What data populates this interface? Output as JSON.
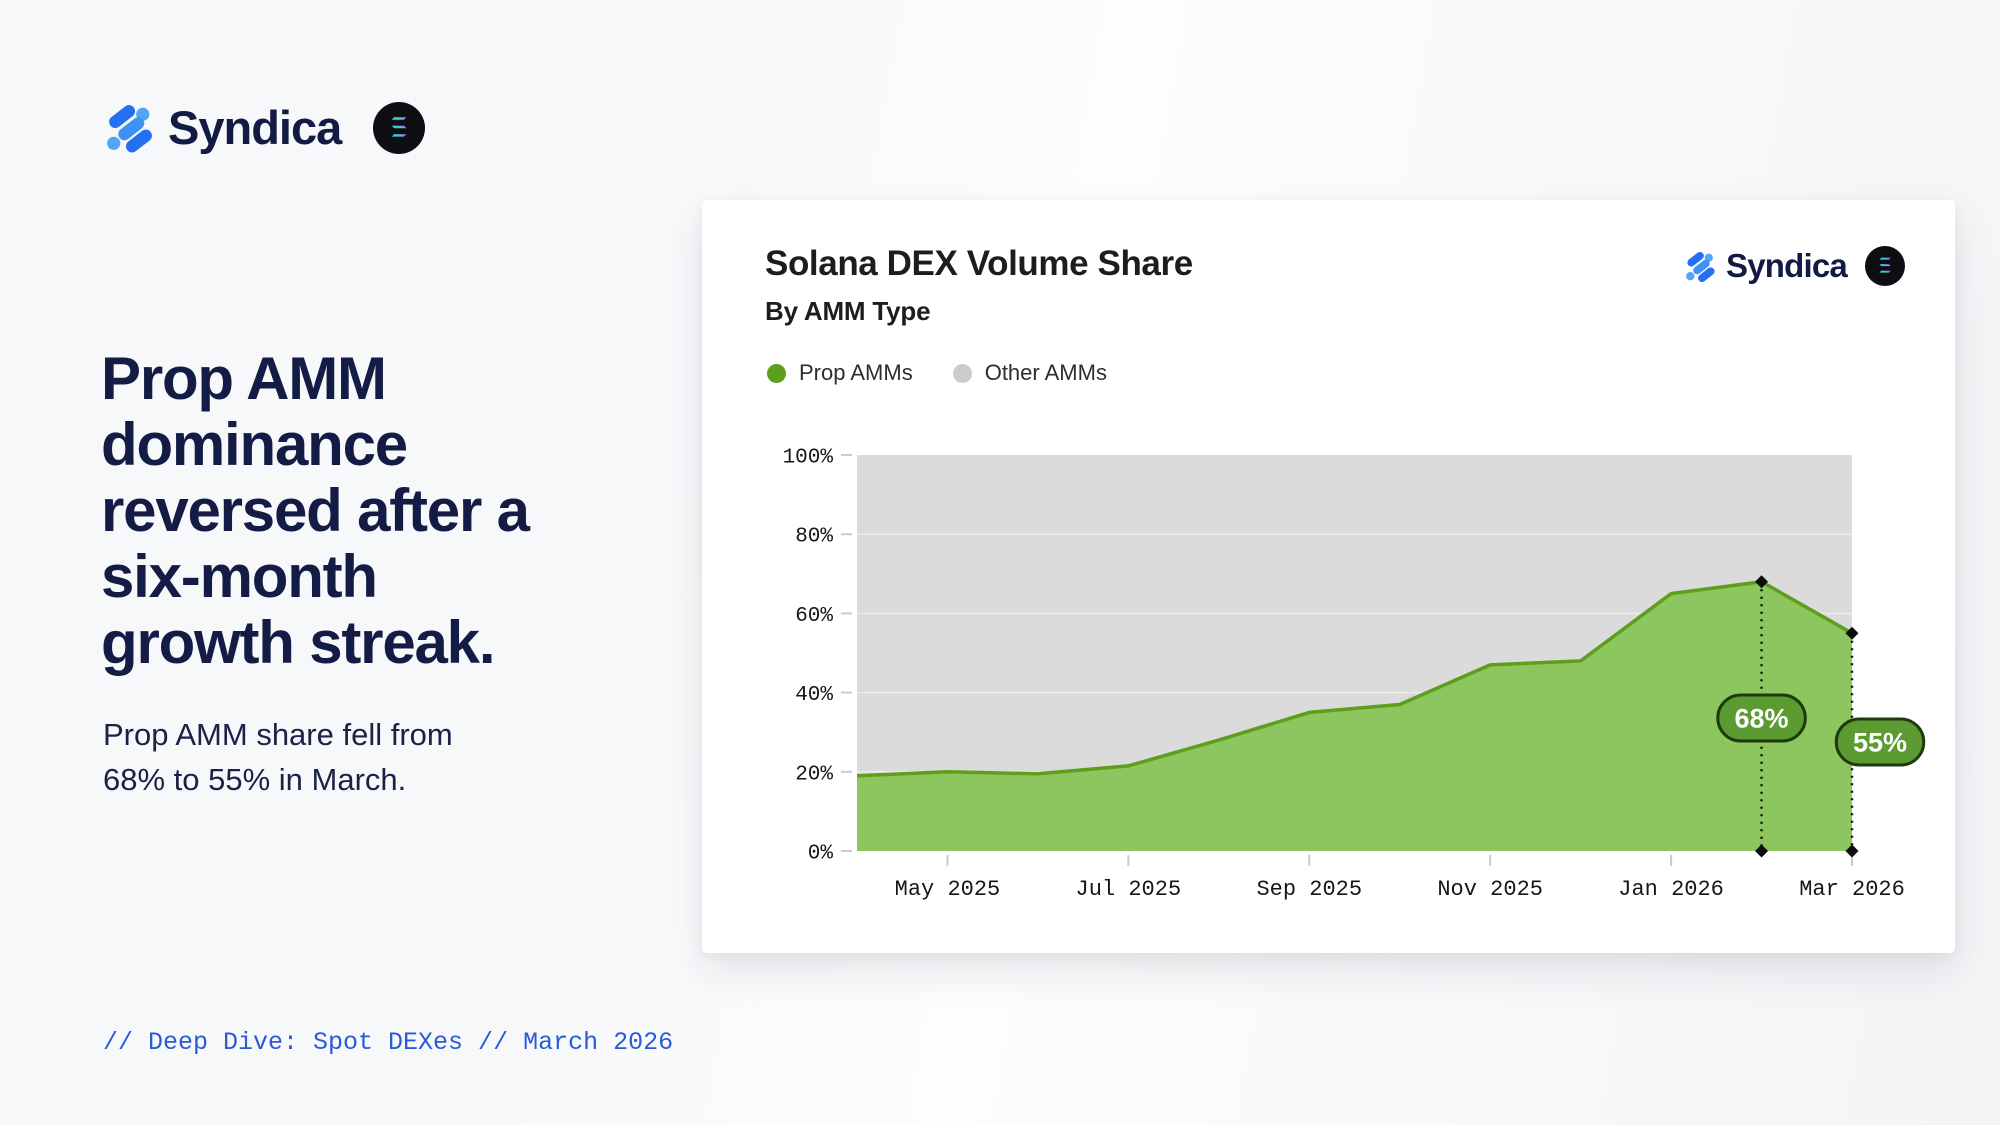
{
  "brand": {
    "name": "Syndica",
    "icon": "syndica-molecule-icon",
    "badge": "solana-icon"
  },
  "left_panel": {
    "headline": "Prop AMM dominance reversed after a six-month growth streak.",
    "subtitle": "Prop AMM share fell from 68% to 55% in March.",
    "footer": "// Deep Dive: Spot DEXes // March 2026"
  },
  "card": {
    "title": "Solana DEX Volume Share",
    "subtitle": "By AMM Type",
    "brand_name": "Syndica"
  },
  "chart_data": {
    "type": "area",
    "stacked_to_100_percent": true,
    "title": "Solana DEX Volume Share",
    "subtitle": "By AMM Type",
    "x": [
      "Apr 2025",
      "May 2025",
      "Jun 2025",
      "Jul 2025",
      "Aug 2025",
      "Sep 2025",
      "Oct 2025",
      "Nov 2025",
      "Dec 2025",
      "Jan 2026",
      "Feb 2026",
      "Mar 2026"
    ],
    "series": [
      {
        "name": "Prop AMMs",
        "color": "#5c9f1b",
        "fill": "#8dc55f",
        "values": [
          19,
          20,
          19.5,
          21.5,
          28,
          35,
          37,
          47,
          48,
          65,
          68,
          55
        ]
      },
      {
        "name": "Other AMMs",
        "color": "#c9cbcd",
        "fill": "#dbdbdb",
        "values": [
          81,
          80,
          80.5,
          78.5,
          72,
          65,
          63,
          53,
          52,
          35,
          32,
          45
        ]
      }
    ],
    "x_tick_labels": [
      "May 2025",
      "Jul 2025",
      "Sep 2025",
      "Nov 2025",
      "Jan 2026",
      "Mar 2026"
    ],
    "y_tick_labels": [
      "0%",
      "20%",
      "40%",
      "60%",
      "80%",
      "100%"
    ],
    "ylim": [
      0,
      100
    ],
    "grid": true,
    "legend_position": "top-left",
    "annotations": [
      {
        "x": "Feb 2026",
        "value": 68,
        "label": "68%"
      },
      {
        "x": "Mar 2026",
        "value": 55,
        "label": "55%"
      }
    ],
    "annotation_style": {
      "pill_fill": "#5b9b31",
      "pill_border": "#1f3a0d",
      "marker_color": "#0d0d0d"
    }
  }
}
